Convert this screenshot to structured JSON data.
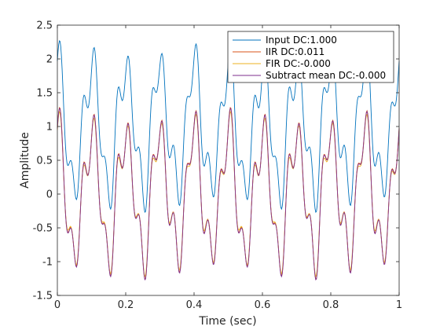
{
  "chart_data": {
    "type": "line",
    "xlabel": "Time (sec)",
    "ylabel": "Amplitude",
    "xlim": [
      0,
      1
    ],
    "ylim": [
      -1.5,
      2.5
    ],
    "x_ticks": [
      "0",
      "0.2",
      "0.4",
      "0.6",
      "0.8",
      "1"
    ],
    "x_tick_values": [
      0,
      0.2,
      0.4,
      0.6,
      0.8,
      1
    ],
    "y_ticks": [
      "-1.5",
      "-1",
      "-0.5",
      "0",
      "0.5",
      "1",
      "1.5",
      "2",
      "2.5"
    ],
    "y_tick_values": [
      -1.5,
      -1,
      -0.5,
      0,
      0.5,
      1,
      1.5,
      2,
      2.5
    ],
    "grid": false,
    "legend_position": "top-right",
    "series": [
      {
        "name": "Input DC:1.000",
        "color": "#0072BD",
        "dc": 1.0,
        "components": [
          {
            "freq": 10,
            "amp": 0.9,
            "phase": 1.57
          },
          {
            "freq": 30,
            "amp": 0.35,
            "phase": 0.0
          },
          {
            "freq": 18,
            "amp": 0.12,
            "phase": 0.6
          }
        ]
      },
      {
        "name": "IIR DC:0.011",
        "color": "#D95319",
        "dc": 0.011,
        "components": [
          {
            "freq": 10,
            "amp": 0.9,
            "phase": 1.57
          },
          {
            "freq": 30,
            "amp": 0.35,
            "phase": 0.0
          },
          {
            "freq": 18,
            "amp": 0.12,
            "phase": 0.6
          }
        ]
      },
      {
        "name": "FIR DC:-0.000",
        "color": "#EDB120",
        "dc": 0.0,
        "components": [
          {
            "freq": 10,
            "amp": 0.87,
            "phase": 1.57
          },
          {
            "freq": 30,
            "amp": 0.33,
            "phase": 0.05
          },
          {
            "freq": 18,
            "amp": 0.11,
            "phase": 0.6
          }
        ]
      },
      {
        "name": "Subtract mean DC:-0.000",
        "color": "#7E2F8E",
        "dc": 0.0,
        "components": [
          {
            "freq": 10,
            "amp": 0.9,
            "phase": 1.57
          },
          {
            "freq": 30,
            "amp": 0.35,
            "phase": 0.0
          },
          {
            "freq": 18,
            "amp": 0.12,
            "phase": 0.6
          }
        ]
      }
    ]
  }
}
